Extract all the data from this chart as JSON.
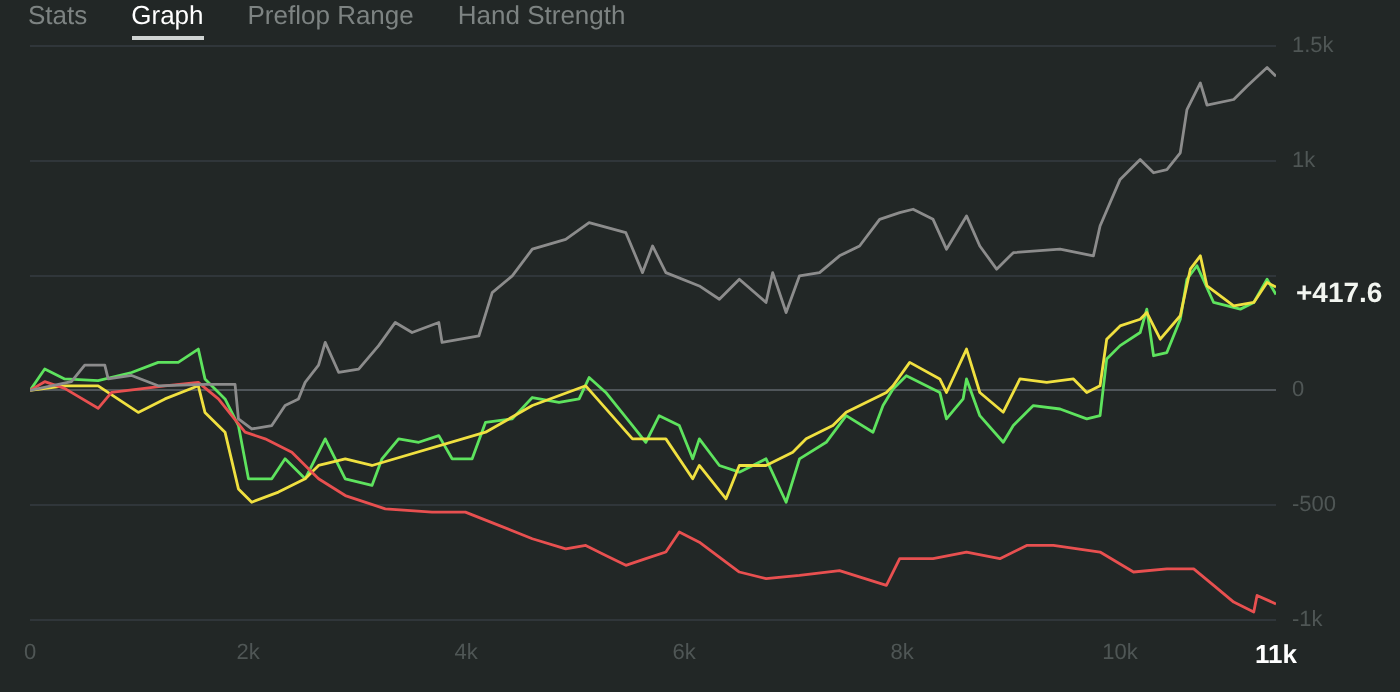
{
  "chart_data": {
    "type": "line",
    "annotations": [
      "Stats",
      "Graph",
      "Preflop Range",
      "Hand Strength",
      {
        "text": "+417.6",
        "x": 11430,
        "y": 417.6
      }
    ],
    "xlim": [
      0,
      11430
    ],
    "xticks": [
      0,
      {
        "value": 2000,
        "label": "2k"
      },
      {
        "value": 4000,
        "label": "4k"
      },
      {
        "value": 6000,
        "label": "6k"
      },
      {
        "value": 8000,
        "label": "8k"
      },
      {
        "value": 10000,
        "label": "10k"
      },
      {
        "value": 11430,
        "label": "11k"
      }
    ],
    "ylim": [
      -1000,
      1500
    ],
    "yticks": [
      {
        "value": -1000,
        "label": "-1k"
      },
      -500,
      0,
      {
        "value": 500,
        "label": null
      },
      {
        "value": 1000,
        "label": "1k"
      },
      {
        "value": 1500,
        "label": "1.5k"
      }
    ],
    "grid": "y",
    "marker": "none",
    "line_style": "solid",
    "series": [
      {
        "color": "#8c8c8c",
        "x": [
          0,
          380,
          502,
          686,
          717,
          932,
          1176,
          1605,
          1881,
          1912,
          2034,
          2218,
          2340,
          2463,
          2524,
          2647,
          2708,
          2831,
          3015,
          3198,
          3351,
          3505,
          3750,
          3780,
          4118,
          4240,
          4424,
          4608,
          4914,
          5129,
          5466,
          5619,
          5711,
          5833,
          6140,
          6324,
          6507,
          6752,
          6813,
          6936,
          7059,
          7243,
          7426,
          7610,
          7794,
          7978,
          8101,
          8284,
          8407,
          8591,
          8713,
          8867,
          9020,
          9449,
          9755,
          9816,
          10000,
          10184,
          10307,
          10429,
          10552,
          10613,
          10736,
          10797,
          11042,
          11164,
          11348,
          11430
        ],
        "values": [
          0,
          38,
          110,
          110,
          50,
          65,
          20,
          26,
          26,
          -124,
          -168,
          -153,
          -66,
          -37,
          35,
          110,
          209,
          79,
          93,
          195,
          296,
          252,
          296,
          209,
          238,
          426,
          499,
          615,
          658,
          731,
          687,
          513,
          629,
          513,
          455,
          397,
          484,
          383,
          513,
          339,
          499,
          513,
          586,
          629,
          745,
          774,
          789,
          745,
          615,
          760,
          629,
          528,
          600,
          615,
          586,
          716,
          919,
          1006,
          948,
          962,
          1035,
          1223,
          1339,
          1243,
          1267,
          1325,
          1406,
          1368
        ]
      },
      {
        "color": "#e85050",
        "x": [
          0,
          135,
          318,
          625,
          748,
          1238,
          1544,
          1728,
          1973,
          2157,
          2402,
          2647,
          2892,
          3259,
          3688,
          3994,
          4301,
          4608,
          4914,
          5098,
          5282,
          5466,
          5649,
          5833,
          5956,
          6140,
          6262,
          6507,
          6752,
          7059,
          7426,
          7856,
          7978,
          8284,
          8591,
          8897,
          9143,
          9388,
          9816,
          10123,
          10429,
          10675,
          10858,
          11042,
          11226,
          11256,
          11430
        ],
        "values": [
          0,
          38,
          9,
          -78,
          -9,
          20,
          35,
          -37,
          -182,
          -211,
          -269,
          -385,
          -458,
          -516,
          -530,
          -530,
          -588,
          -646,
          -690,
          -675,
          -719,
          -762,
          -733,
          -704,
          -617,
          -661,
          -704,
          -791,
          -820,
          -806,
          -785,
          -849,
          -733,
          -733,
          -704,
          -733,
          -675,
          -675,
          -704,
          -791,
          -777,
          -777,
          -849,
          -922,
          -965,
          -893,
          -930
        ]
      },
      {
        "color": "#f0e040",
        "x": [
          0,
          318,
          625,
          993,
          1238,
          1544,
          1605,
          1789,
          1912,
          2034,
          2279,
          2524,
          2647,
          2892,
          3137,
          4179,
          4608,
          5098,
          5527,
          5833,
          6079,
          6140,
          6385,
          6507,
          6752,
          6997,
          7120,
          7365,
          7487,
          7856,
          7917,
          8070,
          8346,
          8407,
          8591,
          8713,
          8928,
          9081,
          9327,
          9572,
          9694,
          9816,
          9877,
          10000,
          10184,
          10245,
          10368,
          10552,
          10644,
          10736,
          10797,
          11042,
          11226,
          11348,
          11430
        ],
        "values": [
          0,
          20,
          20,
          -96,
          -37,
          20,
          -96,
          -182,
          -429,
          -487,
          -443,
          -385,
          -327,
          -298,
          -327,
          -182,
          -66,
          20,
          -211,
          -211,
          -385,
          -327,
          -472,
          -327,
          -327,
          -269,
          -211,
          -153,
          -95,
          -9,
          20,
          122,
          50,
          -9,
          180,
          -9,
          -95,
          50,
          35,
          50,
          -9,
          20,
          223,
          281,
          310,
          339,
          223,
          325,
          528,
          586,
          455,
          368,
          383,
          470,
          450
        ]
      },
      {
        "color": "#5ee35e",
        "x": [
          0,
          135,
          318,
          625,
          932,
          1176,
          1360,
          1544,
          1605,
          1789,
          1912,
          2004,
          2218,
          2340,
          2524,
          2708,
          2892,
          3137,
          3229,
          3382,
          3566,
          3750,
          3872,
          4056,
          4179,
          4424,
          4608,
          4853,
          5037,
          5129,
          5282,
          5527,
          5649,
          5772,
          5956,
          6079,
          6140,
          6324,
          6507,
          6752,
          6936,
          7059,
          7304,
          7487,
          7733,
          7825,
          7917,
          8039,
          8346,
          8407,
          8560,
          8591,
          8713,
          8928,
          9020,
          9204,
          9449,
          9694,
          9816,
          9877,
          10000,
          10184,
          10245,
          10307,
          10429,
          10552,
          10613,
          10705,
          10858,
          11103,
          11226,
          11348,
          11430
        ],
        "values": [
          0,
          93,
          50,
          43,
          78,
          122,
          122,
          180,
          50,
          -37,
          -153,
          -385,
          -385,
          -298,
          -385,
          -211,
          -385,
          -414,
          -298,
          -211,
          -226,
          -197,
          -298,
          -298,
          -139,
          -124,
          -31,
          -52,
          -37,
          56,
          -9,
          -153,
          -226,
          -110,
          -153,
          -298,
          -211,
          -327,
          -356,
          -298,
          -487,
          -298,
          -226,
          -110,
          -182,
          -66,
          6,
          64,
          -9,
          -124,
          -37,
          50,
          -110,
          -226,
          -153,
          -66,
          -81,
          -124,
          -110,
          137,
          195,
          252,
          354,
          151,
          165,
          310,
          484,
          543,
          383,
          354,
          383,
          484,
          417.6
        ]
      }
    ]
  }
}
